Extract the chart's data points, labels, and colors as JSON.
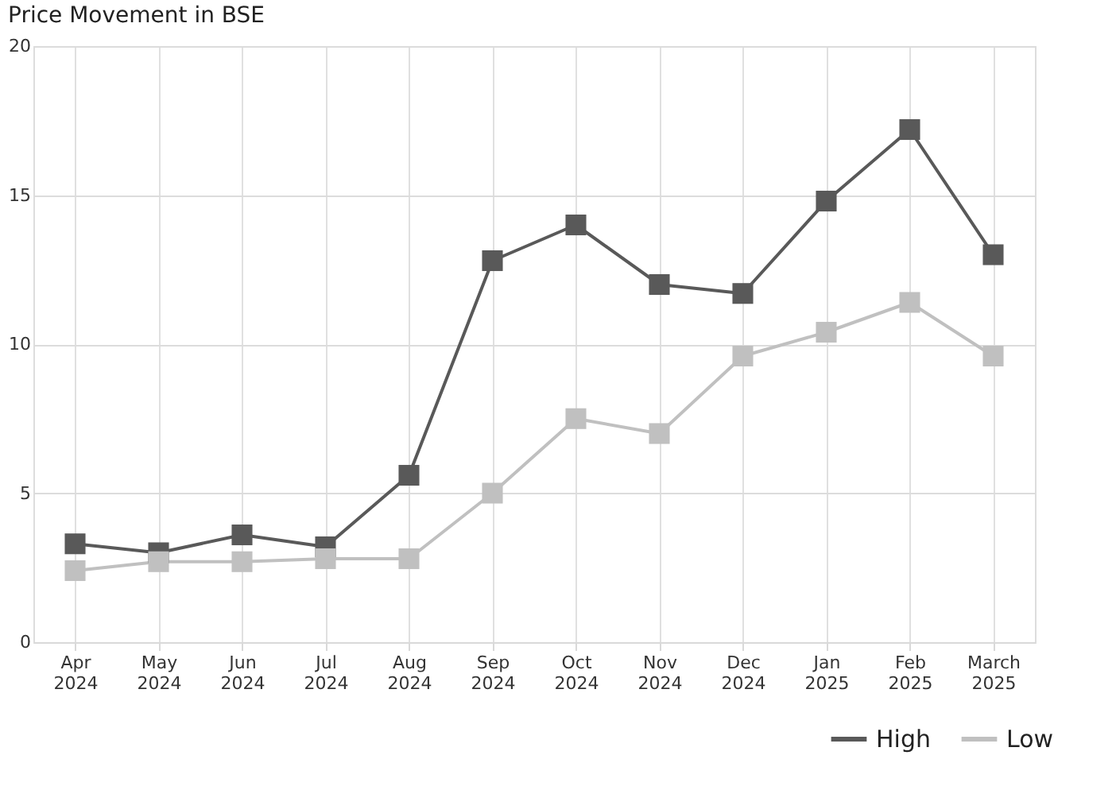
{
  "chart_data": {
    "type": "line",
    "title": "Price Movement in BSE",
    "categories": [
      "Apr 2024",
      "May 2024",
      "Jun 2024",
      "Jul 2024",
      "Aug 2024",
      "Sep 2024",
      "Oct 2024",
      "Nov 2024",
      "Dec 2024",
      "Jan 2025",
      "Feb 2025",
      "March 2025"
    ],
    "series": [
      {
        "name": "High",
        "color": "#595959",
        "values": [
          3.3,
          3.0,
          3.6,
          3.2,
          5.6,
          12.8,
          14.0,
          12.0,
          11.7,
          14.8,
          17.2,
          13.0
        ]
      },
      {
        "name": "Low",
        "color": "#c0c0c0",
        "values": [
          2.4,
          2.7,
          2.7,
          2.8,
          2.8,
          5.0,
          7.5,
          7.0,
          9.6,
          10.4,
          11.4,
          9.6
        ]
      }
    ],
    "ylim": [
      0,
      20
    ],
    "yticks": [
      0,
      5,
      10,
      15,
      20
    ],
    "grid": true,
    "legend": "bottom right",
    "marker": "square",
    "line_style": "solid"
  }
}
